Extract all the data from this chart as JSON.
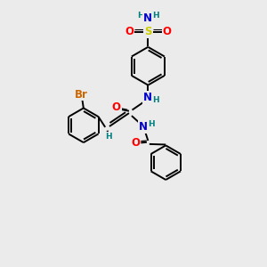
{
  "bg_color": "#ebebeb",
  "atom_colors": {
    "C": "#000000",
    "N": "#0000cc",
    "O": "#ff0000",
    "S": "#cccc00",
    "Br": "#cc6600",
    "H": "#008080"
  },
  "bond_color": "#000000",
  "bond_width": 1.4,
  "font_size_atom": 8.5,
  "font_size_small": 6.5
}
